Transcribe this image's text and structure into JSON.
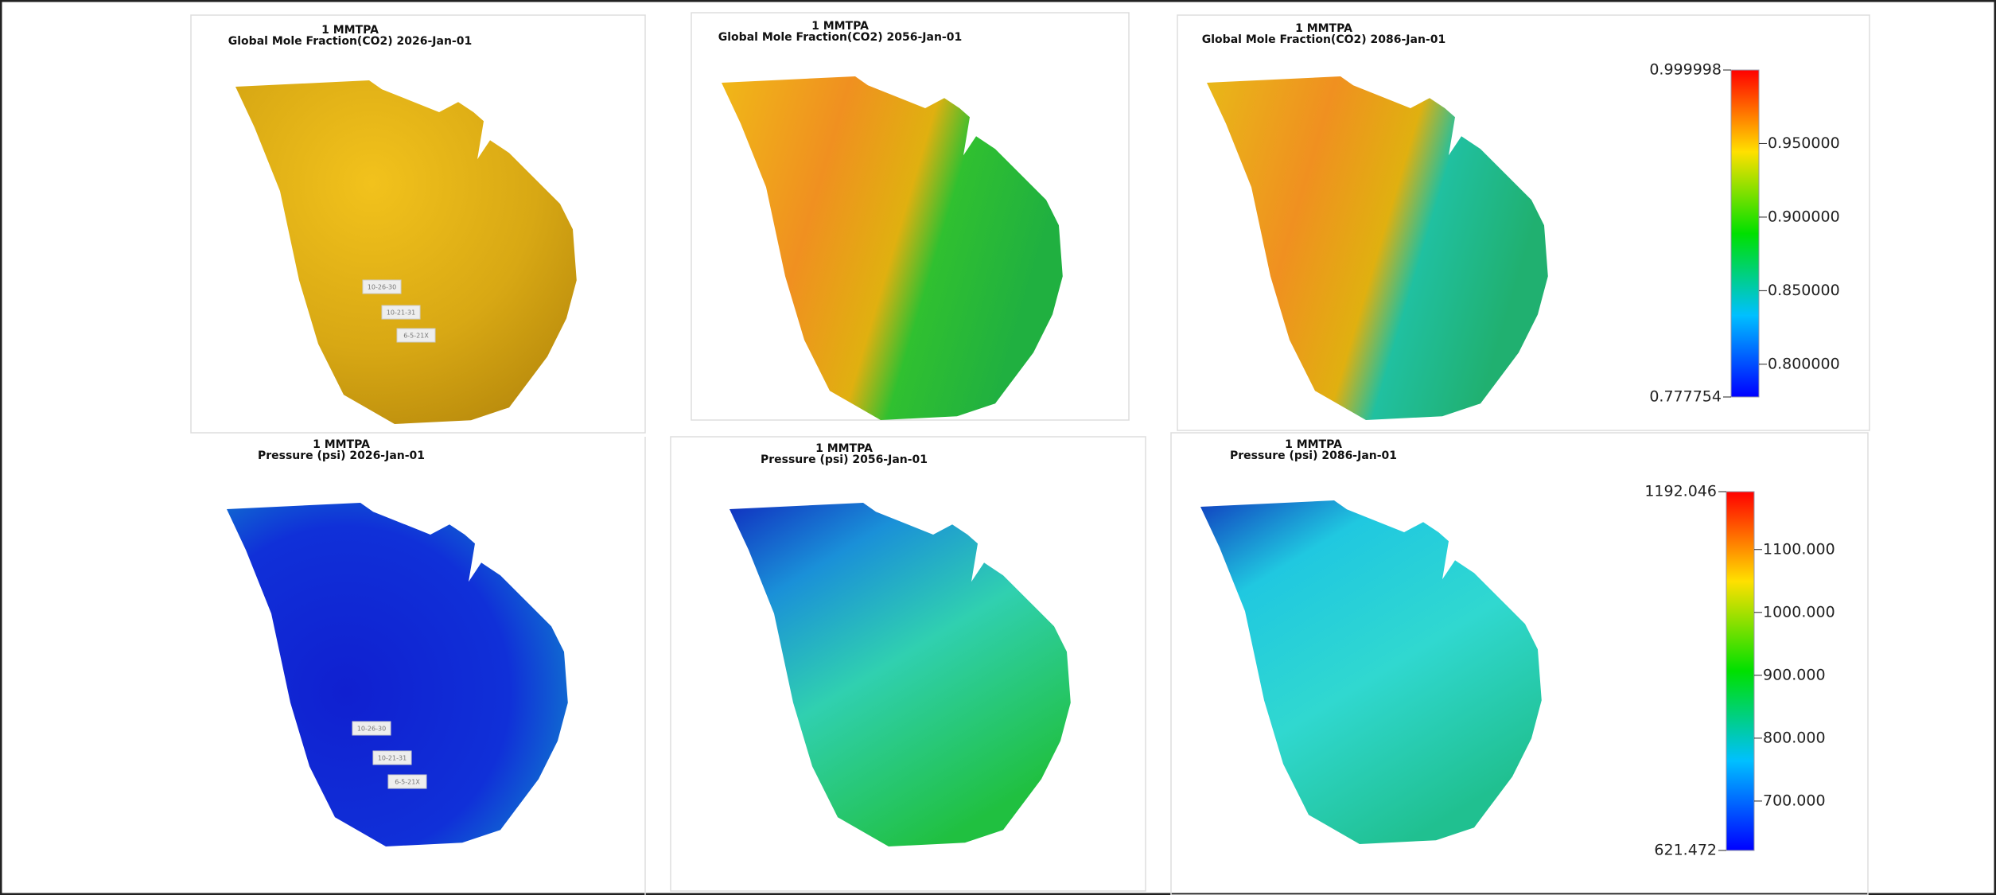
{
  "panels": [
    {
      "title": "1 MMTPA",
      "subtitle": "Global Mole Fraction(CO2)  2026-Jan-01"
    },
    {
      "title": "1 MMTPA",
      "subtitle": "Global Mole Fraction(CO2)  2056-Jan-01"
    },
    {
      "title": "1 MMTPA",
      "subtitle": "Global Mole Fraction(CO2)  2086-Jan-01"
    },
    {
      "title": "1 MMTPA",
      "subtitle": "Pressure (psi)  2026-Jan-01"
    },
    {
      "title": "1 MMTPA",
      "subtitle": "Pressure (psi)  2056-Jan-01"
    },
    {
      "title": "1 MMTPA",
      "subtitle": "Pressure (psi)  2086-Jan-01"
    }
  ],
  "wells": [
    "10-26-30",
    "10-21-31",
    "6-5-21X"
  ],
  "colorbars": [
    {
      "ticks": [
        {
          "value": 0.999998,
          "label": "0.999998"
        },
        {
          "value": 0.95,
          "label": "0.950000"
        },
        {
          "value": 0.9,
          "label": "0.900000"
        },
        {
          "value": 0.85,
          "label": "0.850000"
        },
        {
          "value": 0.8,
          "label": "0.800000"
        },
        {
          "value": 0.777754,
          "label": "0.777754"
        }
      ]
    },
    {
      "ticks": [
        {
          "value": 1192.046,
          "label": "1192.046"
        },
        {
          "value": 1100,
          "label": "1100.000"
        },
        {
          "value": 1000,
          "label": "1000.000"
        },
        {
          "value": 900,
          "label": "900.000"
        },
        {
          "value": 800,
          "label": "800.000"
        },
        {
          "value": 700,
          "label": "700.000"
        },
        {
          "value": 621.472,
          "label": "621.472"
        }
      ]
    }
  ]
}
